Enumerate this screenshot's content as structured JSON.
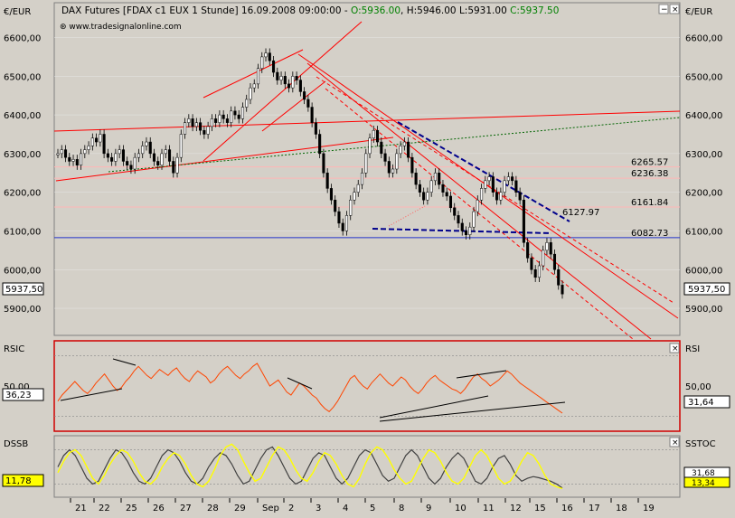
{
  "header": {
    "title": "DAX Futures [FDAX c1 EUX  1 Stunde] 16.09.2008 09:00:00 - ",
    "ohlc": {
      "open": "O:5936.00",
      "high": "H:5946.00",
      "low": "L:5931.00",
      "close": "C:5937.50"
    },
    "source": "www.tradesignalonline.com",
    "currency_left": "€/EUR",
    "currency_right": "€/EUR"
  },
  "colors": {
    "background": "#d4d0c8",
    "plot_bg": "#d4d0c8",
    "trend_red": "#ff0000",
    "support_blue": "#00008b",
    "level_line_blue": "#2233cc",
    "level_line_pink": "#ffb6b6",
    "rsi_line": "#ff4500",
    "dssb_yellow": "#ffff00",
    "dssb_gray": "#404040",
    "panel_border": "#d00000"
  },
  "chart_data": [
    {
      "type": "candlestick",
      "title": "DAX Futures [FDAX c1 EUX  1 Stunde]",
      "x_tick_labels": [
        "21",
        "22",
        "25",
        "26",
        "27",
        "28",
        "29",
        "Sep",
        "2",
        "3",
        "4",
        "5",
        "8",
        "9",
        "10",
        "11",
        "12",
        "15",
        "16",
        "17",
        "18",
        "19"
      ],
      "y_ticks": [
        5900,
        6000,
        6100,
        6200,
        6300,
        6400,
        6500,
        6600
      ],
      "y_tick_labels": [
        "5900,00",
        "6000,00",
        "6100,00",
        "6200,00",
        "6300,00",
        "6400,00",
        "6500,00",
        "6600,00"
      ],
      "ylim": [
        5830,
        6690
      ],
      "last_price_label": "5937,50",
      "last_price": 5937.5,
      "horizontal_levels": [
        {
          "label": "6265.57",
          "value": 6265.57,
          "color": "pink"
        },
        {
          "label": "6236.38",
          "value": 6236.38,
          "color": "pink"
        },
        {
          "label": "6161.84",
          "value": 6161.84,
          "color": "pink"
        },
        {
          "label": "6082.73",
          "value": 6082.73,
          "color": "blue"
        }
      ],
      "annotations": [
        {
          "label": "6127.97",
          "value": 6127.97
        }
      ],
      "close_series_approx": [
        6300,
        6310,
        6290,
        6280,
        6285,
        6270,
        6300,
        6310,
        6320,
        6340,
        6330,
        6350,
        6300,
        6290,
        6280,
        6300,
        6310,
        6280,
        6270,
        6260,
        6290,
        6300,
        6320,
        6330,
        6300,
        6280,
        6270,
        6300,
        6310,
        6280,
        6250,
        6290,
        6350,
        6380,
        6390,
        6370,
        6380,
        6360,
        6350,
        6370,
        6390,
        6380,
        6400,
        6390,
        6380,
        6410,
        6400,
        6390,
        6420,
        6440,
        6470,
        6480,
        6520,
        6550,
        6560,
        6540,
        6510,
        6490,
        6500,
        6480,
        6470,
        6500,
        6490,
        6460,
        6440,
        6420,
        6380,
        6350,
        6300,
        6250,
        6210,
        6180,
        6150,
        6120,
        6100,
        6140,
        6180,
        6200,
        6220,
        6250,
        6300,
        6340,
        6360,
        6330,
        6300,
        6280,
        6250,
        6260,
        6300,
        6320,
        6330,
        6290,
        6250,
        6220,
        6200,
        6180,
        6200,
        6230,
        6250,
        6220,
        6200,
        6190,
        6160,
        6140,
        6120,
        6100,
        6090,
        6110,
        6150,
        6180,
        6210,
        6230,
        6240,
        6200,
        6180,
        6200,
        6230,
        6240,
        6230,
        6200,
        6180,
        6070,
        6030,
        6000,
        5980,
        6010,
        6050,
        6070,
        6040,
        6000,
        5960,
        5937
      ]
    },
    {
      "type": "line",
      "title": "RSIC",
      "right_label": "RSI",
      "y_ticks": [
        50
      ],
      "y_tick_labels": [
        "50,00"
      ],
      "ylim": [
        20,
        80
      ],
      "current_left_label": "36,23",
      "current_left_value": 36.23,
      "current_right_label": "31,64",
      "current_right_value": 31.64,
      "values_approx": [
        40,
        44,
        47,
        50,
        53,
        50,
        47,
        45,
        48,
        52,
        55,
        58,
        54,
        50,
        47,
        49,
        53,
        56,
        60,
        63,
        60,
        57,
        55,
        58,
        61,
        59,
        57,
        60,
        62,
        58,
        55,
        53,
        57,
        60,
        58,
        56,
        52,
        54,
        58,
        61,
        63,
        60,
        57,
        55,
        58,
        60,
        63,
        65,
        60,
        55,
        50,
        52,
        54,
        50,
        46,
        44,
        48,
        52,
        50,
        47,
        44,
        42,
        38,
        35,
        33,
        36,
        40,
        45,
        50,
        55,
        57,
        53,
        50,
        48,
        52,
        55,
        58,
        55,
        52,
        50,
        53,
        56,
        54,
        50,
        47,
        45,
        48,
        52,
        55,
        57,
        54,
        52,
        50,
        48,
        47,
        45,
        48,
        52,
        56,
        58,
        55,
        53,
        50,
        52,
        54,
        57,
        60,
        58,
        55,
        52,
        50,
        48,
        46,
        44,
        42,
        40,
        38,
        36,
        34,
        32
      ]
    },
    {
      "type": "line",
      "title": "DSSB",
      "right_label": "SSTOC",
      "y_ticks": [],
      "ylim": [
        0,
        100
      ],
      "current_left_label": "11,78",
      "current_left_value": 11.78,
      "current_right_labels": [
        "31,68",
        "13,34"
      ],
      "current_right_values": [
        31.68,
        13.34
      ],
      "series": [
        {
          "name": "DSSB",
          "color": "yellow",
          "values_approx": [
            40,
            60,
            75,
            80,
            70,
            50,
            30,
            20,
            35,
            55,
            70,
            80,
            75,
            60,
            40,
            25,
            20,
            30,
            50,
            65,
            75,
            70,
            55,
            35,
            20,
            15,
            25,
            45,
            70,
            85,
            90,
            80,
            60,
            40,
            25,
            30,
            50,
            70,
            85,
            80,
            65,
            45,
            30,
            25,
            40,
            60,
            75,
            70,
            55,
            35,
            20,
            15,
            30,
            55,
            75,
            85,
            80,
            65,
            45,
            30,
            20,
            25,
            45,
            65,
            80,
            75,
            60,
            40,
            25,
            20,
            30,
            50,
            70,
            80,
            70,
            50,
            30,
            20,
            25,
            40,
            60,
            75,
            70,
            55,
            35,
            20,
            15,
            12
          ]
        },
        {
          "name": "SSTOC",
          "color": "gray",
          "values_approx": [
            50,
            70,
            80,
            70,
            50,
            30,
            20,
            25,
            45,
            65,
            80,
            75,
            60,
            40,
            25,
            20,
            30,
            50,
            70,
            80,
            75,
            60,
            40,
            25,
            20,
            30,
            50,
            65,
            75,
            70,
            55,
            35,
            20,
            25,
            45,
            65,
            80,
            85,
            70,
            50,
            30,
            20,
            25,
            45,
            65,
            75,
            70,
            50,
            30,
            20,
            30,
            50,
            70,
            80,
            75,
            55,
            35,
            25,
            30,
            50,
            70,
            80,
            70,
            50,
            30,
            20,
            30,
            50,
            65,
            75,
            65,
            45,
            25,
            20,
            30,
            50,
            65,
            70,
            55,
            35,
            25,
            30,
            33,
            31,
            28,
            25,
            20,
            13
          ]
        }
      ]
    }
  ],
  "controls": {
    "minimize": "−",
    "close": "×"
  }
}
